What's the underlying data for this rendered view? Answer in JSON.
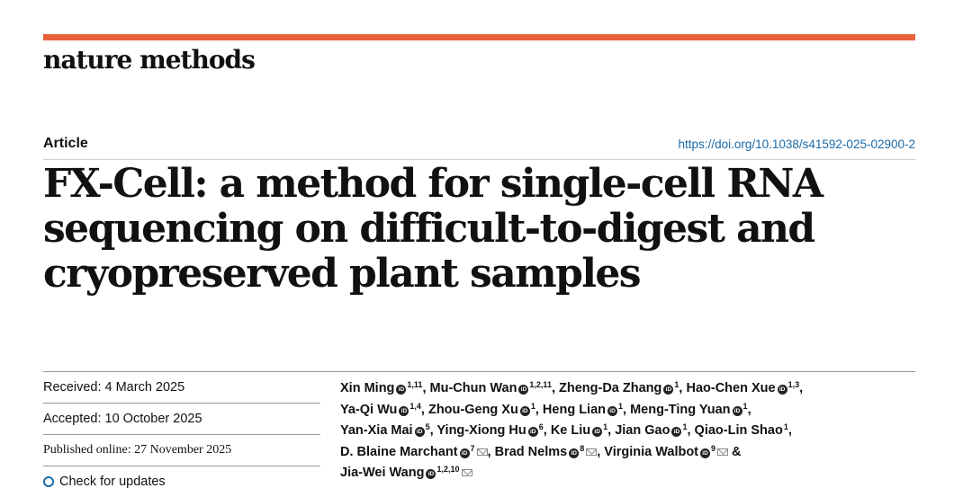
{
  "journal": {
    "name": "nature methods",
    "accent_color": "#e8623a"
  },
  "article": {
    "type": "Article",
    "doi": "https://doi.org/10.1038/s41592-025-02900-2",
    "title": "FX-Cell: a method for single-cell RNA sequencing on difficult-to-digest and cryopreserved plant samples"
  },
  "dates": {
    "received": "Received: 4 March 2025",
    "accepted": "Accepted: 10 October 2025",
    "published": "Published online: 27 November 2025",
    "check_updates": "Check for updates"
  },
  "authors": [
    {
      "name": "Xin Ming",
      "aff": "1,11",
      "orcid": true,
      "mail": false,
      "sep": ", "
    },
    {
      "name": "Mu-Chun Wan",
      "aff": "1,2,11",
      "orcid": true,
      "mail": false,
      "sep": ", "
    },
    {
      "name": "Zheng-Da Zhang",
      "aff": "1",
      "orcid": true,
      "mail": false,
      "sep": ", "
    },
    {
      "name": "Hao-Chen Xue",
      "aff": "1,3",
      "orcid": true,
      "mail": false,
      "sep": ", "
    },
    {
      "name": "Ya-Qi Wu",
      "aff": "1,4",
      "orcid": true,
      "mail": false,
      "sep": ", "
    },
    {
      "name": "Zhou-Geng Xu",
      "aff": "1",
      "orcid": true,
      "mail": false,
      "sep": ", "
    },
    {
      "name": "Heng Lian",
      "aff": "1",
      "orcid": true,
      "mail": false,
      "sep": ", "
    },
    {
      "name": "Meng-Ting Yuan",
      "aff": "1",
      "orcid": true,
      "mail": false,
      "sep": ", "
    },
    {
      "name": "Yan-Xia Mai",
      "aff": "5",
      "orcid": true,
      "mail": false,
      "sep": ", "
    },
    {
      "name": "Ying-Xiong Hu",
      "aff": "6",
      "orcid": true,
      "mail": false,
      "sep": ", "
    },
    {
      "name": "Ke Liu",
      "aff": "1",
      "orcid": true,
      "mail": false,
      "sep": ", "
    },
    {
      "name": "Jian Gao",
      "aff": "1",
      "orcid": true,
      "mail": false,
      "sep": ", "
    },
    {
      "name": "Qiao-Lin Shao",
      "aff": "1",
      "orcid": false,
      "mail": false,
      "sep": ", "
    },
    {
      "name": "D. Blaine Marchant",
      "aff": "7",
      "orcid": true,
      "mail": true,
      "sep": ", "
    },
    {
      "name": "Brad Nelms",
      "aff": "8",
      "orcid": true,
      "mail": true,
      "sep": ", "
    },
    {
      "name": "Virginia Walbot",
      "aff": "9",
      "orcid": true,
      "mail": true,
      "sep": " & "
    },
    {
      "name": "Jia-Wei Wang",
      "aff": "1,2,10",
      "orcid": true,
      "mail": true,
      "sep": ""
    }
  ]
}
